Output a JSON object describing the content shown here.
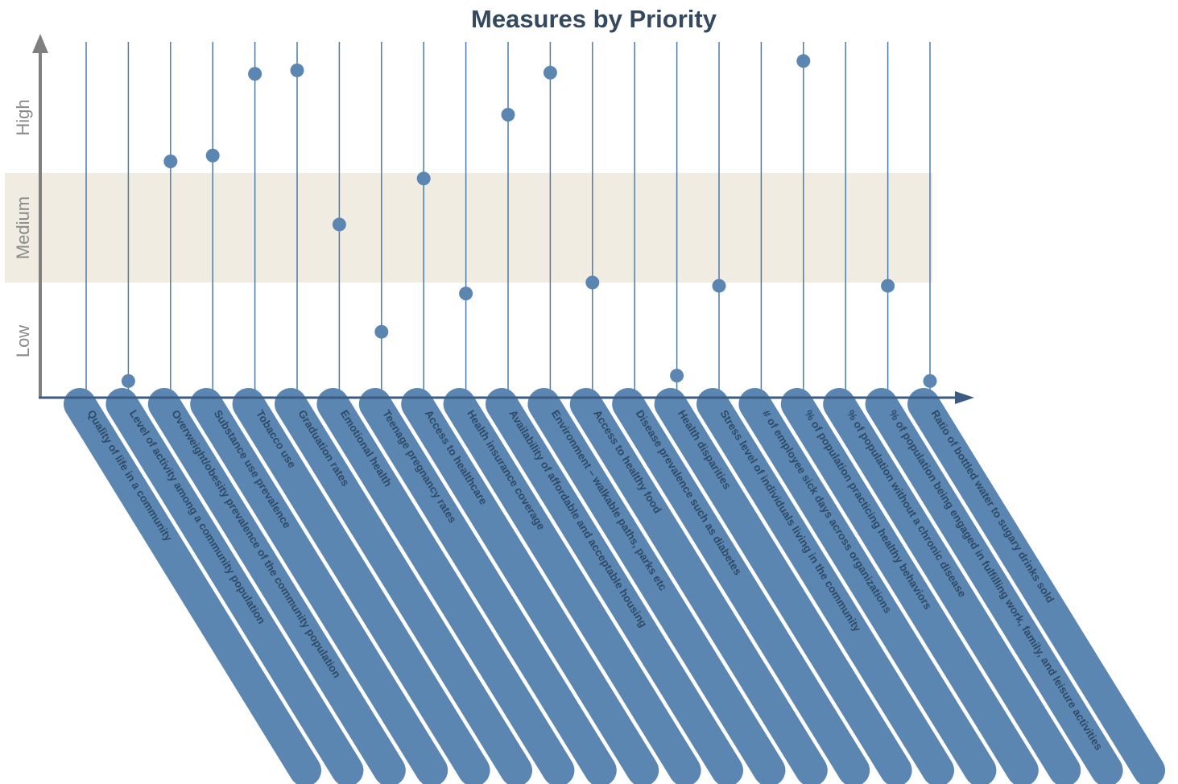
{
  "chart_data": {
    "type": "scatter",
    "title": "Measures by Priority",
    "y_bands": [
      "Low",
      "Medium",
      "High"
    ],
    "ylim": [
      0,
      3
    ],
    "colors": {
      "point": "#5b86b2",
      "stem": "#4f7aa8",
      "label_bar": "#5b86b2",
      "medium_band": "#f0ece1",
      "axis": "#7f7f7f",
      "x_axis_arrow": "#3b5b80"
    },
    "categories": [
      "Quality of life in a community",
      "Level of activity among a community population",
      "Overweight/obesity prevalence of the community population",
      "Substance use prevalence",
      "Tobacco use",
      "Graduation rates",
      "Emotional health",
      "Teenage pregnancy rates",
      "Access to healthcare",
      "Health insurance coverage",
      "Availability of affordable and acceptable housing",
      "Environment – walkable paths, parks etc",
      "Access to healthy food",
      "Disease prevalence such as diabetes",
      "Health disparities",
      "Stress level of individuals living in the community",
      "# of employee sick days across organizations",
      "% of population practicing healthy behaviors",
      "% of population without a chronic disease",
      "% of population being engaged in fulfilling work, family, and leisure activities",
      "Ratio of bottled water to sugary drinks sold"
    ],
    "values": [
      null,
      0.1,
      2.1,
      2.15,
      2.85,
      2.88,
      1.53,
      0.55,
      1.95,
      0.9,
      2.5,
      2.86,
      1.0,
      null,
      0.15,
      0.97,
      null,
      2.96,
      null,
      0.97,
      0.1
    ]
  }
}
